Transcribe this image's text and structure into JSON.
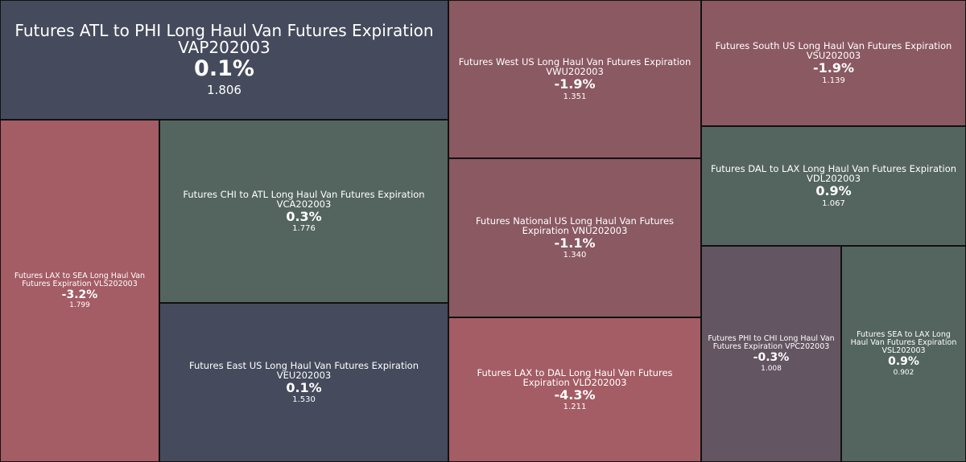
{
  "tiles": [
    {
      "name": "Futures ATL to PHI Long Haul Van Futures Expiration VAP202003",
      "change": "0.1%",
      "price": "1.806",
      "color": "#454b5c"
    },
    {
      "name": "Futures LAX to SEA Long Haul Van Futures Expiration VLS202003",
      "change": "-3.2%",
      "price": "1.799",
      "color": "#a45c65"
    },
    {
      "name": "Futures CHI to ATL Long Haul Van Futures Expiration VCA202003",
      "change": "0.3%",
      "price": "1.776",
      "color": "#546560"
    },
    {
      "name": "Futures East US Long Haul Van Futures Expiration VEU202003",
      "change": "0.1%",
      "price": "1.530",
      "color": "#454b5c"
    },
    {
      "name": "Futures West US Long Haul Van Futures Expiration VWU202003",
      "change": "-1.9%",
      "price": "1.351",
      "color": "#8a5962"
    },
    {
      "name": "Futures National US Long Haul Van Futures Expiration VNU202003",
      "change": "-1.1%",
      "price": "1.340",
      "color": "#8a5962"
    },
    {
      "name": "Futures LAX to DAL Long Haul Van Futures Expiration VLD202003",
      "change": "-4.3%",
      "price": "1.211",
      "color": "#a45c65"
    },
    {
      "name": "Futures South US Long Haul Van Futures Expiration VSU202003",
      "change": "-1.9%",
      "price": "1.139",
      "color": "#8a5962"
    },
    {
      "name": "Futures DAL to LAX Long Haul Van Futures Expiration VDL202003",
      "change": "0.9%",
      "price": "1.067",
      "color": "#546560"
    },
    {
      "name": "Futures PHI to CHI Long Haul Van Futures Expiration VPC202003",
      "change": "-0.3%",
      "price": "1.008",
      "color": "#635561"
    },
    {
      "name": "Futures SEA to LAX Long Haul Van Futures Expiration VSL202003",
      "change": "0.9%",
      "price": "0.902",
      "color": "#546560"
    }
  ]
}
